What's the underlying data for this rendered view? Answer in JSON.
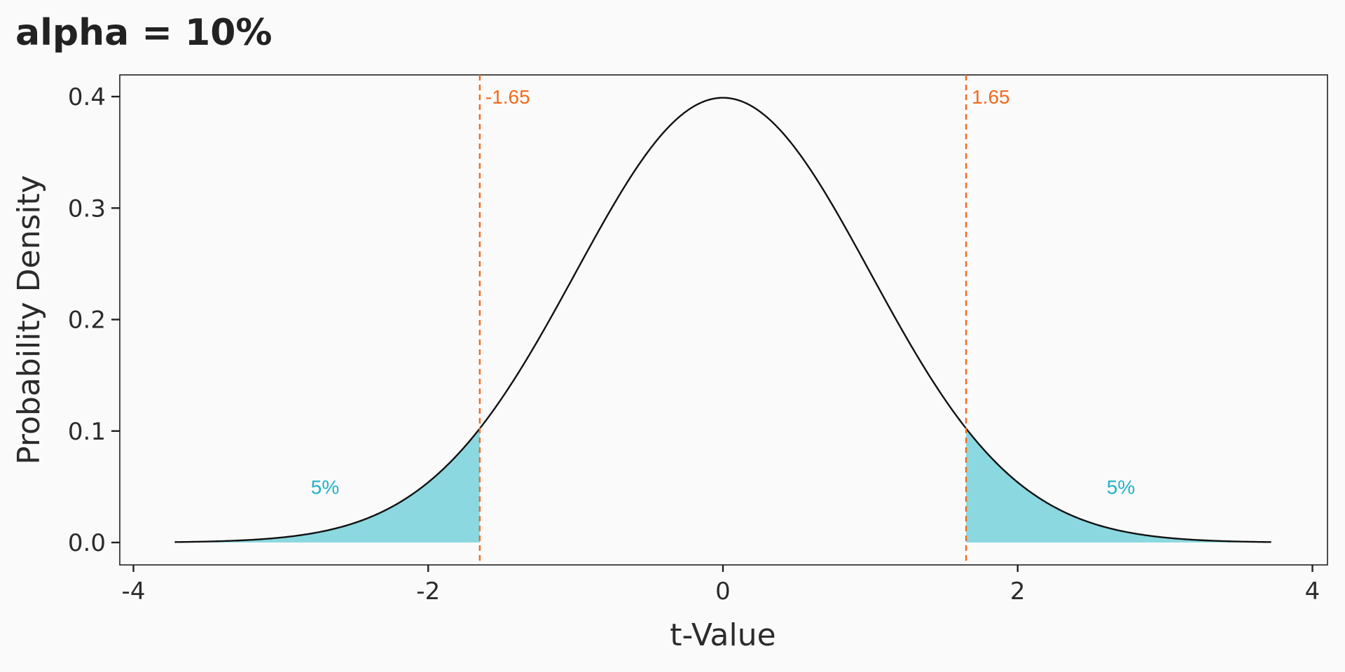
{
  "chart_data": {
    "type": "area",
    "title": "alpha = 10%",
    "xlabel": "t-Value",
    "ylabel": "Probability Density",
    "xlim": [
      -4,
      4
    ],
    "ylim": [
      0,
      0.4
    ],
    "x_ticks": [
      -4,
      -2,
      0,
      2,
      4
    ],
    "y_ticks": [
      0.0,
      0.1,
      0.2,
      0.3,
      0.4
    ],
    "x_tick_labels": [
      "-4",
      "-2",
      "0",
      "2",
      "4"
    ],
    "y_tick_labels": [
      "0.0",
      "0.1",
      "0.2",
      "0.3",
      "0.4"
    ],
    "curve": {
      "distribution": "standard normal density",
      "x_range": [
        -3.72,
        3.72
      ],
      "color": "#111111"
    },
    "critical_values": [
      {
        "x": -1.65,
        "label": "-1.65"
      },
      {
        "x": 1.65,
        "label": "1.65"
      }
    ],
    "critical_line_color": "#f26b1d",
    "shaded_tails": [
      {
        "from": -3.72,
        "to": -1.65,
        "label": "5%",
        "label_x": -2.7,
        "label_y": 0.05
      },
      {
        "from": 1.65,
        "to": 3.72,
        "label": "5%",
        "label_x": 2.7,
        "label_y": 0.05
      }
    ],
    "tail_fill_color": "#8bd8e0",
    "tail_label_color": "#1fb3c8",
    "grid": false,
    "legend": "none"
  }
}
